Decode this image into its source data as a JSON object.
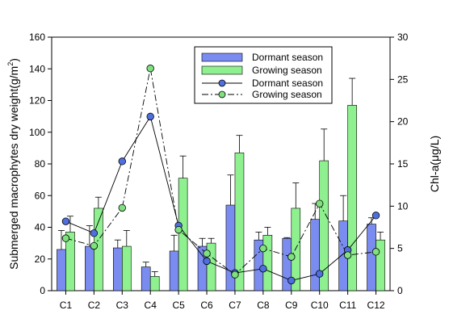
{
  "chart_data": {
    "type": "bar",
    "categories": [
      "C1",
      "C2",
      "C3",
      "C4",
      "C5",
      "C6",
      "C7",
      "C8",
      "C9",
      "C10",
      "C11",
      "C12"
    ],
    "ylabel": "Submerged macrophytes dry weight(g/m²)",
    "ylabel_parts": [
      "Submerged macrophytes dry weight(g/m",
      "2",
      ")"
    ],
    "y2label": "Chl-a(μg/L)",
    "ylim": [
      0,
      160
    ],
    "y2lim": [
      0,
      30
    ],
    "yticks": [
      0,
      20,
      40,
      60,
      80,
      100,
      120,
      140,
      160
    ],
    "y2ticks": [
      0,
      5,
      10,
      15,
      20,
      25,
      30
    ],
    "legend_position": "top-center",
    "grid": false,
    "bar_series": [
      {
        "name": "Dormant season",
        "color": "#7b8cf0",
        "values": [
          26,
          28,
          27,
          15,
          25,
          28,
          54,
          32,
          33,
          45,
          44,
          42
        ],
        "errors": [
          12,
          13,
          5,
          3,
          10,
          5,
          19,
          5,
          0.5,
          10,
          16,
          4
        ]
      },
      {
        "name": "Growing season",
        "color": "#8ef08e",
        "values": [
          37,
          52,
          28,
          9,
          71,
          30,
          87,
          35,
          52,
          82,
          117,
          32
        ],
        "errors": [
          10,
          7,
          10,
          3,
          14,
          3,
          11,
          5,
          16,
          20,
          17,
          5
        ]
      }
    ],
    "line_series": [
      {
        "name": "Dormant season",
        "color": "#4f6fe0",
        "style": "solid",
        "values": [
          8.2,
          6.8,
          15.3,
          20.6,
          7.7,
          3.5,
          2.1,
          2.6,
          1.2,
          2.0,
          4.8,
          8.9
        ]
      },
      {
        "name": "Growing season",
        "color": "#7ee07e",
        "style": "dashdot",
        "values": [
          6.2,
          5.3,
          9.8,
          26.3,
          7.2,
          4.4,
          1.9,
          5.0,
          4.0,
          10.3,
          4.2,
          4.6
        ]
      }
    ]
  }
}
